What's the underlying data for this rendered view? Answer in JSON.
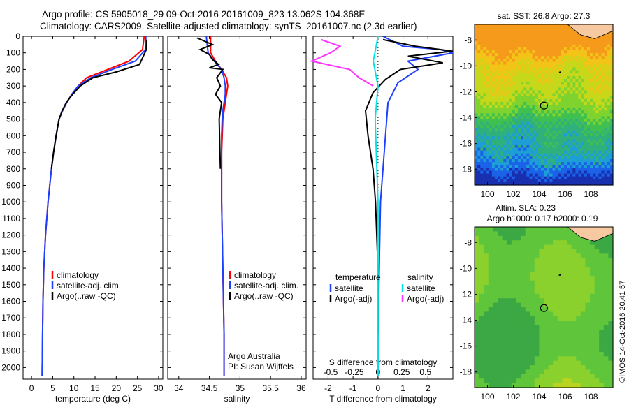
{
  "header": {
    "line1": "Argo profile: CS 5905018_29 09-Oct-2016 20161009_823 13.062S 104.368E",
    "line2": "Climatology: CARS2009. Satellite-adjusted climatology: synTS_20161007.nc (2.3d earlier)"
  },
  "colors": {
    "climatology": "#ff0000",
    "satellite": "#1f3fff",
    "argo": "#000000",
    "sal_satellite": "#00e5e5",
    "sal_argo": "#ff33ff"
  },
  "depth_ticks": [
    "0",
    "100",
    "200",
    "300",
    "400",
    "500",
    "600",
    "700",
    "800",
    "900",
    "1000",
    "1100",
    "1200",
    "1300",
    "1400",
    "1500",
    "1600",
    "1700",
    "1800",
    "1900",
    "2000"
  ],
  "chart_data": [
    {
      "type": "line",
      "name": "temperature",
      "xlabel": "temperature (deg C)",
      "xticks": [
        "0",
        "5",
        "10",
        "15",
        "20",
        "25",
        "30"
      ],
      "xlim": [
        -2,
        31
      ],
      "ylim": [
        2070,
        0
      ],
      "legend": [
        "climatology",
        "satellite-adj. clim.",
        "Argo(..raw -QC)"
      ],
      "series": [
        {
          "name": "climatology",
          "color": "#ff0000",
          "x": [
            26.6,
            26.2,
            23,
            18,
            13,
            11,
            9.5,
            8.3,
            7.3,
            6.5,
            5.8,
            5.2,
            4.7,
            4.3,
            3.9,
            3.6,
            3.3,
            3.1,
            2.9,
            2.7,
            2.6,
            2.5
          ],
          "y": [
            0,
            80,
            150,
            200,
            250,
            300,
            350,
            400,
            450,
            500,
            600,
            700,
            800,
            900,
            1000,
            1100,
            1200,
            1300,
            1400,
            1600,
            1800,
            2050
          ]
        },
        {
          "name": "satellite-adj. clim.",
          "color": "#1f3fff",
          "x": [
            27,
            26.9,
            24.5,
            19,
            14,
            11,
            9.5,
            8.3,
            7.3,
            6.5,
            5.8,
            5.2,
            4.7,
            4.3,
            3.9,
            3.6,
            3.3,
            3.1,
            2.9,
            2.7,
            2.6,
            2.5
          ],
          "y": [
            0,
            80,
            150,
            200,
            250,
            300,
            350,
            400,
            450,
            500,
            600,
            700,
            800,
            900,
            1000,
            1100,
            1200,
            1300,
            1400,
            1600,
            1800,
            2050
          ]
        },
        {
          "name": "Argo(..raw -QC)",
          "color": "#000000",
          "x": [
            27.2,
            27.1,
            25.5,
            20,
            14.5,
            11.5,
            9.7,
            8.2,
            7.2,
            6.5,
            5.8,
            5.2,
            4.7
          ],
          "y": [
            20,
            80,
            170,
            215,
            250,
            300,
            350,
            400,
            450,
            500,
            600,
            700,
            800
          ]
        }
      ]
    },
    {
      "type": "line",
      "name": "salinity",
      "xlabel": "salinity",
      "xticks": [
        "34",
        "34.5",
        "35",
        "35.5",
        "36"
      ],
      "xlim": [
        33.82,
        36.08
      ],
      "ylim": [
        2070,
        0
      ],
      "legend": [
        "climatology",
        "satellite-adj. clim.",
        "Argo(..raw -QC)"
      ],
      "annotation": [
        "Argo Australia",
        "PI: Susan Wijffels"
      ],
      "series": [
        {
          "name": "climatology",
          "color": "#ff0000",
          "x": [
            34.52,
            34.52,
            34.6,
            34.7,
            34.78,
            34.8,
            34.78,
            34.76,
            34.74,
            34.72,
            34.71,
            34.7,
            34.7,
            34.7,
            34.71,
            34.72,
            34.73,
            34.74,
            34.74
          ],
          "y": [
            0,
            100,
            150,
            200,
            250,
            300,
            350,
            400,
            450,
            500,
            600,
            700,
            800,
            1000,
            1200,
            1400,
            1600,
            1800,
            2050
          ]
        },
        {
          "name": "satellite-adj. clim.",
          "color": "#1f3fff",
          "x": [
            34.45,
            34.48,
            34.58,
            34.7,
            34.74,
            34.76,
            34.76,
            34.74,
            34.72,
            34.71,
            34.7,
            34.7,
            34.7,
            34.7,
            34.71,
            34.72,
            34.73,
            34.74,
            34.74
          ],
          "y": [
            0,
            100,
            150,
            200,
            250,
            300,
            350,
            400,
            450,
            500,
            600,
            700,
            800,
            1000,
            1200,
            1400,
            1600,
            1800,
            2050
          ]
        },
        {
          "name": "Argo(..raw -QC)",
          "color": "#000000",
          "x": [
            34.3,
            34.55,
            34.35,
            34.5,
            34.55,
            34.65,
            34.5,
            34.72,
            34.62,
            34.68,
            34.6,
            34.7,
            34.66,
            34.68
          ],
          "y": [
            10,
            50,
            80,
            110,
            140,
            170,
            190,
            200,
            250,
            300,
            350,
            400,
            500,
            800
          ]
        }
      ]
    },
    {
      "type": "line",
      "name": "difference",
      "xlabel": "T difference from climatology",
      "xlabel_top": "S difference from climatology",
      "xticks": [
        "-2",
        "-1",
        "0",
        "1",
        "2"
      ],
      "xticks_top": [
        "-0.5",
        "-0.25",
        "0",
        "0.25",
        "0.5"
      ],
      "xlim": [
        -2.6,
        3.0
      ],
      "ylim": [
        2070,
        0
      ],
      "legend_left_title": "temperature",
      "legend_right_title": "salinity",
      "legend_left": [
        "satellite",
        "Argo(-adj)"
      ],
      "legend_right": [
        "satellite",
        "Argo(-adj)"
      ],
      "series": [
        {
          "name": "temperature satellite",
          "color": "#1f3fff",
          "x": [
            0.2,
            1,
            2.5,
            3,
            1.2,
            1.6,
            0.8,
            0.4,
            0.3,
            0.2,
            0.1,
            0.05,
            0,
            0
          ],
          "y": [
            0,
            60,
            80,
            100,
            150,
            200,
            280,
            400,
            600,
            800,
            1000,
            1400,
            1800,
            2050
          ]
        },
        {
          "name": "temperature Argo(-adj)",
          "color": "#000000",
          "x": [
            0.2,
            1.5,
            3,
            1.2,
            2.6,
            0.9,
            0.3,
            -0.2,
            -0.5,
            -0.4,
            -0.2,
            -0.1,
            0,
            0
          ],
          "y": [
            20,
            60,
            90,
            120,
            160,
            200,
            260,
            340,
            450,
            600,
            800,
            1000,
            1400,
            1800
          ]
        },
        {
          "name": "salinity satellite",
          "color": "#00e5e5",
          "x": [
            0,
            -0.05,
            0,
            -0.03,
            0,
            0,
            0
          ],
          "y": [
            0,
            150,
            300,
            500,
            1000,
            1500,
            2050
          ]
        },
        {
          "name": "salinity Argo(-adj)",
          "color": "#ff33ff",
          "x": [
            -0.6,
            -0.4,
            -0.5,
            -0.7,
            -0.3,
            -0.2,
            -0.05
          ],
          "y": [
            20,
            60,
            100,
            150,
            200,
            250,
            300
          ]
        }
      ]
    },
    {
      "type": "heatmap",
      "name": "sst-map",
      "title": "sat. SST: 26.8 Argo: 27.3",
      "xticks": [
        "100",
        "102",
        "104",
        "106",
        "108"
      ],
      "yticks": [
        "-8",
        "-10",
        "-12",
        "-14",
        "-16",
        "-18"
      ],
      "xlim": [
        99,
        109.7
      ],
      "ylim": [
        -19.2,
        -6.8
      ],
      "marker": {
        "lon": 104.368,
        "lat": -13.062
      }
    },
    {
      "type": "heatmap",
      "name": "sla-map",
      "title": "Altim. SLA: 0.23",
      "subtitle": "Argo h1000: 0.17 h2000: 0.19",
      "xticks": [
        "100",
        "102",
        "104",
        "106",
        "108"
      ],
      "yticks": [
        "-8",
        "-10",
        "-12",
        "-14",
        "-16",
        "-18"
      ],
      "xlim": [
        99,
        109.7
      ],
      "ylim": [
        -19.2,
        -6.8
      ],
      "marker": {
        "lon": 104.368,
        "lat": -13.062
      }
    }
  ],
  "credit": "©IMOS 14-Oct-2016 20:41:57"
}
